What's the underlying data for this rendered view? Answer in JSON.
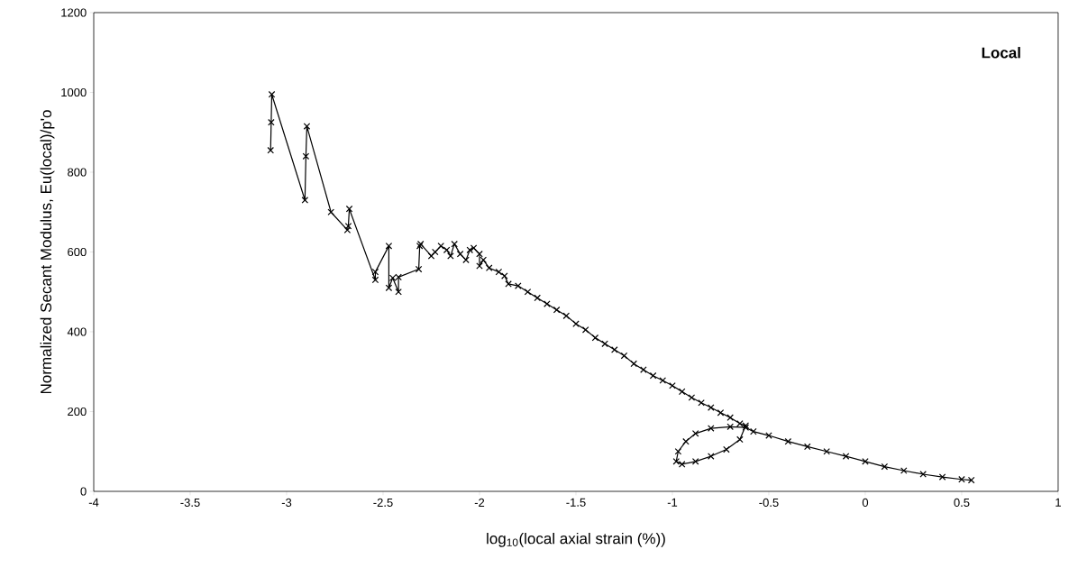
{
  "chart_data": {
    "type": "line",
    "xlabel": "log$_{10}$(local axial strain (%))",
    "ylabel": "Normalized Secant Modulus, Eu(local)/p'o",
    "annotations": [
      "**Local**"
    ],
    "xlim": [
      -4,
      1
    ],
    "xticks": [
      -4,
      -3.5,
      -3,
      -2.5,
      -2,
      -1.5,
      -1,
      -0.5,
      0,
      0.5,
      1
    ],
    "ylim": [
      0,
      1200
    ],
    "yticks": [
      0,
      200,
      400,
      600,
      800,
      1000,
      1200
    ],
    "grid": false,
    "marker": "cross",
    "line_style": "solid",
    "series": [
      {
        "color": "#000000",
        "x": [
          -3.083,
          -3.08,
          -3.077,
          -2.905,
          -2.9,
          -2.895,
          -2.77,
          -2.685,
          -2.68,
          -2.675,
          -2.54,
          -2.54,
          -2.47,
          -2.47,
          -2.45,
          -2.42,
          -2.42,
          -2.315,
          -2.31,
          -2.305,
          -2.25,
          -2.23,
          -2.2,
          -2.17,
          -2.15,
          -2.13,
          -2.1,
          -2.07,
          -2.05,
          -2.03,
          -2.0,
          -2.0,
          -1.98,
          -1.95,
          -1.9,
          -1.87,
          -1.85,
          -1.8,
          -1.75,
          -1.7,
          -1.65,
          -1.6,
          -1.55,
          -1.5,
          -1.45,
          -1.4,
          -1.35,
          -1.3,
          -1.25,
          -1.2,
          -1.15,
          -1.1,
          -1.05,
          -1.0,
          -0.95,
          -0.9,
          -0.85,
          -0.8,
          -0.75,
          -0.7,
          -0.65,
          -0.62,
          -0.65,
          -0.72,
          -0.8,
          -0.88,
          -0.95,
          -0.98,
          -0.97,
          -0.93,
          -0.88,
          -0.8,
          -0.7,
          -0.62,
          -0.58,
          -0.5,
          -0.4,
          -0.3,
          -0.2,
          -0.1,
          0,
          0.1,
          0.2,
          0.3,
          0.4,
          0.5,
          0.55
        ],
        "values": [
          855,
          925,
          995,
          730,
          840,
          915,
          700,
          655,
          665,
          708,
          530,
          550,
          615,
          510,
          535,
          500,
          537,
          557,
          615,
          620,
          590,
          600,
          615,
          605,
          590,
          620,
          595,
          580,
          605,
          610,
          595,
          565,
          580,
          560,
          550,
          540,
          520,
          515,
          500,
          485,
          470,
          455,
          440,
          420,
          405,
          385,
          370,
          355,
          340,
          320,
          305,
          290,
          278,
          265,
          250,
          235,
          222,
          210,
          197,
          185,
          170,
          165,
          130,
          105,
          88,
          75,
          68,
          75,
          100,
          125,
          145,
          158,
          162,
          160,
          150,
          140,
          125,
          112,
          100,
          88,
          75,
          62,
          52,
          43,
          36,
          30,
          28
        ]
      }
    ]
  }
}
